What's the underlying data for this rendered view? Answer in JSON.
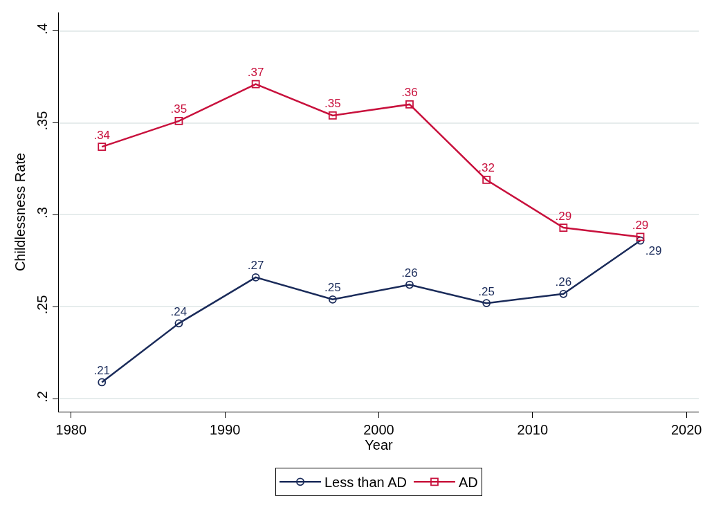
{
  "chart_data": {
    "type": "line",
    "xlabel": "Year",
    "ylabel": "Childlessness Rate",
    "x": [
      1982,
      1987,
      1992,
      1997,
      2002,
      2007,
      2012,
      2017
    ],
    "series": [
      {
        "name": "Less than AD",
        "color": "#1a2b5a",
        "marker": "circle",
        "values": [
          0.209,
          0.241,
          0.266,
          0.254,
          0.262,
          0.252,
          0.257,
          0.286
        ],
        "value_labels": [
          ".21",
          ".24",
          ".27",
          ".25",
          ".26",
          ".25",
          ".26",
          ".29"
        ]
      },
      {
        "name": "AD",
        "color": "#c8103c",
        "marker": "square",
        "values": [
          0.337,
          0.351,
          0.371,
          0.354,
          0.36,
          0.319,
          0.293,
          0.288
        ],
        "value_labels": [
          ".34",
          ".35",
          ".37",
          ".35",
          ".36",
          ".32",
          ".29",
          ".29"
        ]
      }
    ],
    "xlim": [
      1979.2,
      2020.8
    ],
    "xticks": [
      1980,
      1990,
      2000,
      2010,
      2020
    ],
    "ylim": [
      0.193,
      0.41
    ],
    "yticks": [
      {
        "value": 0.2,
        "label": ".2"
      },
      {
        "value": 0.25,
        "label": ".25"
      },
      {
        "value": 0.3,
        "label": ".3"
      },
      {
        "value": 0.35,
        "label": ".35"
      },
      {
        "value": 0.4,
        "label": ".4"
      }
    ],
    "grid": "y",
    "legend": "bottom",
    "line_style": "solid"
  }
}
